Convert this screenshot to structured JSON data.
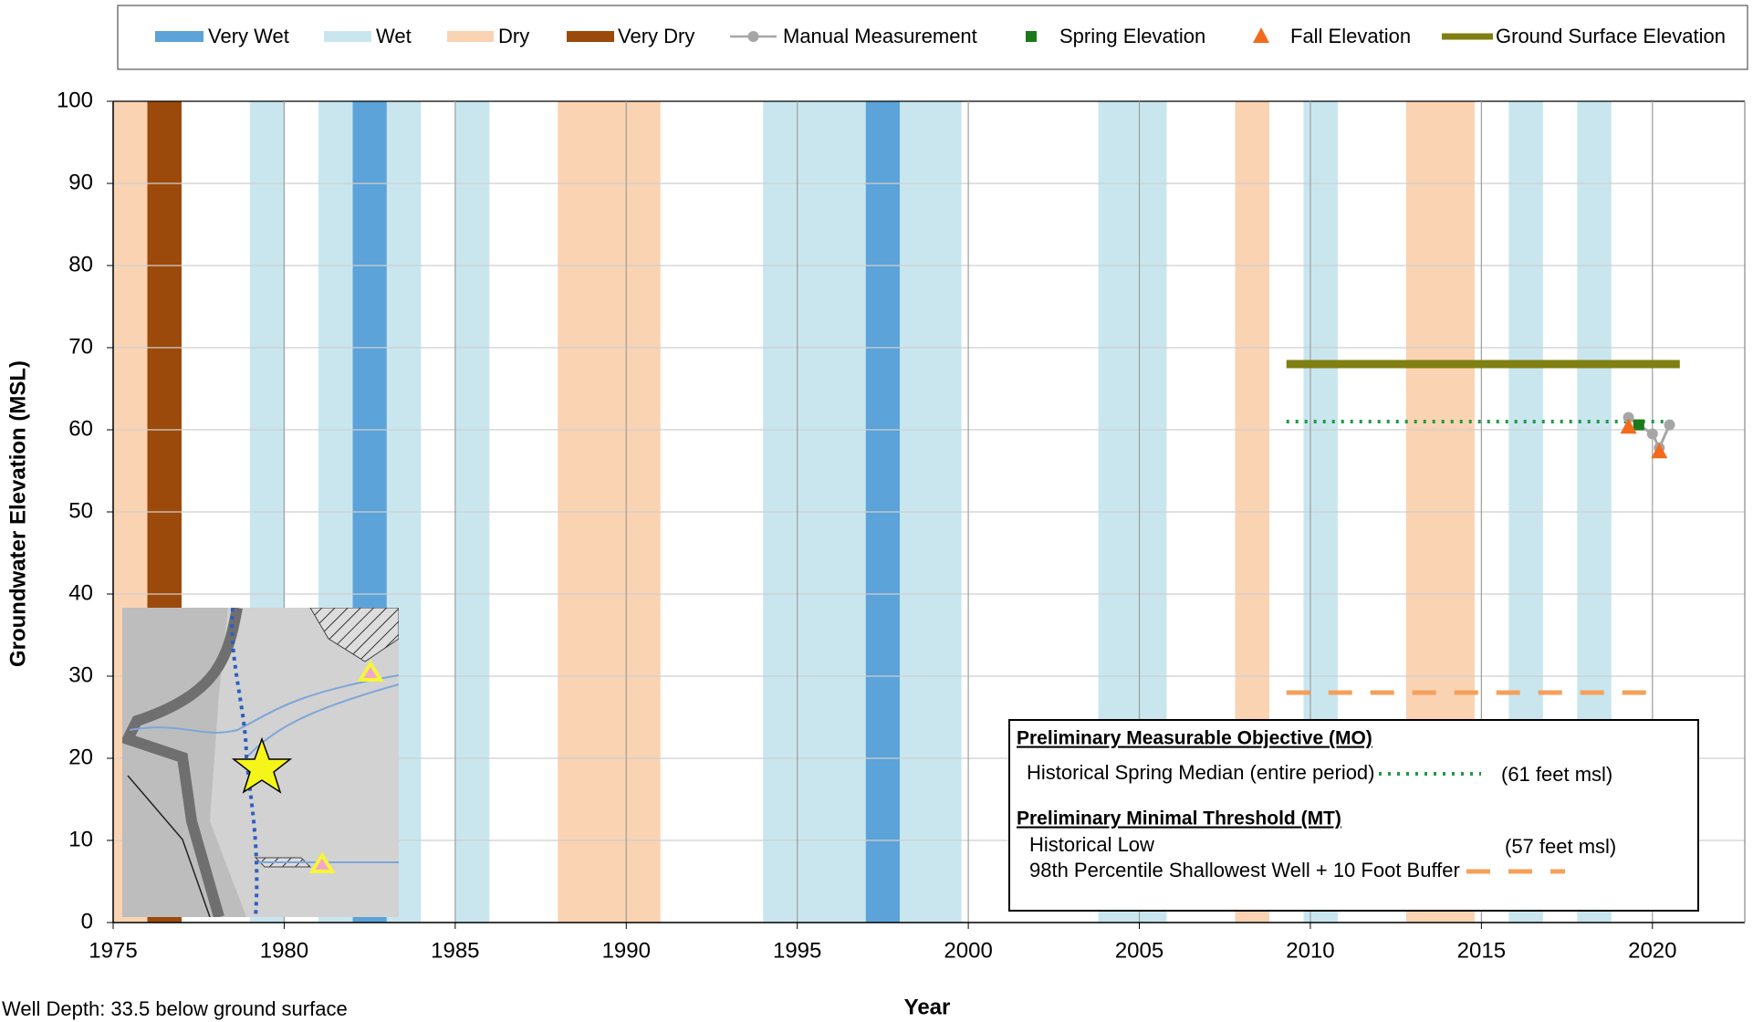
{
  "chart_data": {
    "type": "line",
    "x_label": "Year",
    "y_label": "Groundwater Elevation (MSL)",
    "footnote": "Well Depth: 33.5 below ground surface",
    "xlim": [
      1975,
      2022.7
    ],
    "xticks": [
      1975,
      1980,
      1985,
      1990,
      1995,
      2000,
      2005,
      2010,
      2015,
      2020
    ],
    "ylim": [
      0,
      100
    ],
    "yticks": [
      0,
      10,
      20,
      30,
      40,
      50,
      60,
      70,
      80,
      90,
      100
    ],
    "grid": true,
    "legend": "top",
    "year_types": [
      {
        "name": "Very Wet",
        "color": "#5ba3d9",
        "bands": [
          [
            1982,
            1983
          ],
          [
            1997,
            1998
          ]
        ]
      },
      {
        "name": "Wet",
        "color": "#c9e6ef",
        "bands": [
          [
            1979,
            1980
          ],
          [
            1981,
            1982
          ],
          [
            1983,
            1984
          ],
          [
            1985,
            1986
          ],
          [
            1994,
            1997
          ],
          [
            1998,
            1999.8
          ],
          [
            2003.8,
            2005.8
          ],
          [
            2009.8,
            2010.8
          ],
          [
            2015.8,
            2016.8
          ],
          [
            2017.8,
            2018.8
          ]
        ]
      },
      {
        "name": "Dry",
        "color": "#fad3b3",
        "bands": [
          [
            1975,
            1976
          ],
          [
            1988,
            1991
          ],
          [
            2007.8,
            2008.8
          ],
          [
            2012.8,
            2014.8
          ]
        ]
      },
      {
        "name": "Very Dry",
        "color": "#9b4a0b",
        "bands": [
          [
            1976,
            1977
          ]
        ]
      }
    ],
    "series": [
      {
        "name": "Manual Measurement",
        "color": "#a6a6a6",
        "marker": "circle-line",
        "x": [
          2019.3,
          2019.6,
          2020.0,
          2020.2,
          2020.5
        ],
        "values": [
          61.5,
          60.6,
          59.5,
          57.8,
          60.6
        ]
      },
      {
        "name": "Spring Elevation",
        "color": "#1a7a1a",
        "marker": "square",
        "x": [
          2019.6
        ],
        "values": [
          60.6
        ]
      },
      {
        "name": "Fall Elevation",
        "color": "#f26b1d",
        "marker": "triangle",
        "x": [
          2019.3,
          2020.2
        ],
        "values": [
          60.3,
          57.3
        ]
      },
      {
        "name": "Ground Surface Elevation",
        "color": "#7f7f12",
        "marker": "line",
        "x": [
          2009.3,
          2020.8
        ],
        "values": [
          68,
          68
        ]
      }
    ],
    "mo_heading": "Preliminary Measurable Objective (MO)",
    "mt_heading": "Preliminary Minimal Threshold (MT)",
    "reference_lines": [
      {
        "label": "Historical Spring Median (entire period)",
        "value_label": "(61 feet msl)",
        "value": 61,
        "xrange": [
          2009.3,
          2020.6
        ],
        "color": "#2ebd59",
        "style": "dotted"
      },
      {
        "label": "Historical Low",
        "value_label": "(57 feet msl)",
        "value": 57,
        "xrange": [
          2009.3,
          2020.6
        ],
        "color": "#e8b3b8",
        "style": "blurred"
      },
      {
        "label": "98th Percentile Shallowest Well + 10 Foot Buffer",
        "value": 28,
        "xrange": [
          2009.3,
          2020.2
        ],
        "color": "#f5a05a",
        "style": "dashed"
      }
    ]
  }
}
